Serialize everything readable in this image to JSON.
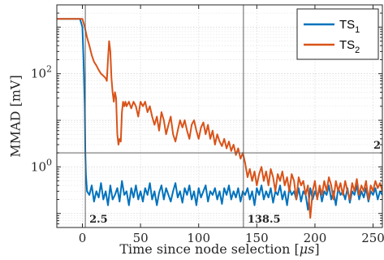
{
  "chart_data": {
    "type": "line",
    "xlabel": "Time since node selection [",
    "xlabel_unit": "μs",
    "xlabel_close": "]",
    "ylabel": "MMAD [mV]",
    "x_scale": "linear",
    "y_scale": "log",
    "xlim": [
      -22,
      258
    ],
    "ylim": [
      0.05,
      3000
    ],
    "x_ticks": [
      0,
      50,
      100,
      150,
      200,
      250
    ],
    "y_ticks": [
      {
        "value": 1,
        "base": "10",
        "exp": "0"
      },
      {
        "value": 100,
        "base": "10",
        "exp": "2"
      }
    ],
    "grid": "on (major and minor, dotted)",
    "legend_position": "top-right",
    "vertical_markers": [
      {
        "x": 2.5,
        "label": "2.5"
      },
      {
        "x": 138.5,
        "label": "138.5"
      }
    ],
    "horizontal_marker": {
      "y": 2.0,
      "label": "2"
    },
    "series": [
      {
        "name": "TS",
        "subscript": "1",
        "color": "#0072BD",
        "points": [
          [
            -22,
            1500
          ],
          [
            -5,
            1500
          ],
          [
            -2,
            1500
          ],
          [
            0,
            1000
          ],
          [
            1,
            200
          ],
          [
            2,
            20
          ],
          [
            2.5,
            2
          ],
          [
            3,
            0.7
          ],
          [
            4,
            0.3
          ],
          [
            6,
            0.25
          ],
          [
            8,
            0.4
          ],
          [
            10,
            0.18
          ],
          [
            12,
            0.3
          ],
          [
            14,
            0.22
          ],
          [
            16,
            0.45
          ],
          [
            18,
            0.2
          ],
          [
            20,
            0.3
          ],
          [
            22,
            0.15
          ],
          [
            24,
            0.4
          ],
          [
            26,
            0.2
          ],
          [
            28,
            0.25
          ],
          [
            30,
            0.35
          ],
          [
            32,
            0.18
          ],
          [
            34,
            0.5
          ],
          [
            36,
            0.25
          ],
          [
            38,
            0.3
          ],
          [
            40,
            0.15
          ],
          [
            42,
            0.35
          ],
          [
            44,
            0.22
          ],
          [
            46,
            0.4
          ],
          [
            48,
            0.2
          ],
          [
            50,
            0.3
          ],
          [
            52,
            0.18
          ],
          [
            54,
            0.35
          ],
          [
            56,
            0.25
          ],
          [
            58,
            0.45
          ],
          [
            60,
            0.2
          ],
          [
            62,
            0.3
          ],
          [
            64,
            0.15
          ],
          [
            66,
            0.28
          ],
          [
            68,
            0.4
          ],
          [
            70,
            0.2
          ],
          [
            72,
            0.35
          ],
          [
            74,
            0.25
          ],
          [
            76,
            0.18
          ],
          [
            78,
            0.3
          ],
          [
            80,
            0.45
          ],
          [
            82,
            0.22
          ],
          [
            84,
            0.3
          ],
          [
            86,
            0.17
          ],
          [
            88,
            0.35
          ],
          [
            90,
            0.25
          ],
          [
            92,
            0.4
          ],
          [
            94,
            0.2
          ],
          [
            96,
            0.3
          ],
          [
            98,
            0.15
          ],
          [
            100,
            0.35
          ],
          [
            102,
            0.22
          ],
          [
            104,
            0.3
          ],
          [
            106,
            0.4
          ],
          [
            108,
            0.18
          ],
          [
            110,
            0.3
          ],
          [
            112,
            0.25
          ],
          [
            114,
            0.35
          ],
          [
            116,
            0.2
          ],
          [
            118,
            0.3
          ],
          [
            120,
            0.16
          ],
          [
            122,
            0.35
          ],
          [
            124,
            0.25
          ],
          [
            126,
            0.4
          ],
          [
            128,
            0.2
          ],
          [
            130,
            0.3
          ],
          [
            132,
            0.22
          ],
          [
            134,
            0.35
          ],
          [
            136,
            0.18
          ],
          [
            138,
            0.3
          ],
          [
            140,
            0.25
          ],
          [
            142,
            0.35
          ],
          [
            144,
            0.2
          ],
          [
            146,
            0.3
          ],
          [
            148,
            0.15
          ],
          [
            150,
            0.35
          ],
          [
            152,
            0.25
          ],
          [
            154,
            0.4
          ],
          [
            156,
            0.2
          ],
          [
            158,
            0.3
          ],
          [
            160,
            0.22
          ],
          [
            162,
            0.35
          ],
          [
            164,
            0.17
          ],
          [
            166,
            0.3
          ],
          [
            168,
            0.25
          ],
          [
            170,
            0.4
          ],
          [
            172,
            0.2
          ],
          [
            174,
            0.3
          ],
          [
            176,
            0.15
          ],
          [
            178,
            0.35
          ],
          [
            180,
            0.25
          ],
          [
            182,
            0.3
          ],
          [
            184,
            0.2
          ],
          [
            186,
            0.35
          ],
          [
            188,
            0.18
          ],
          [
            190,
            0.3
          ],
          [
            192,
            0.25
          ],
          [
            194,
            0.12
          ],
          [
            196,
            0.35
          ],
          [
            198,
            0.2
          ],
          [
            200,
            0.3
          ],
          [
            202,
            0.22
          ],
          [
            204,
            0.35
          ],
          [
            206,
            0.18
          ],
          [
            208,
            0.3
          ],
          [
            210,
            0.25
          ],
          [
            212,
            0.4
          ],
          [
            214,
            0.2
          ],
          [
            216,
            0.3
          ],
          [
            218,
            0.15
          ],
          [
            220,
            0.35
          ],
          [
            222,
            0.25
          ],
          [
            224,
            0.3
          ],
          [
            226,
            0.2
          ],
          [
            228,
            0.35
          ],
          [
            230,
            0.17
          ],
          [
            232,
            0.3
          ],
          [
            234,
            0.25
          ],
          [
            236,
            0.4
          ],
          [
            238,
            0.2
          ],
          [
            240,
            0.3
          ],
          [
            242,
            0.22
          ],
          [
            244,
            0.35
          ],
          [
            246,
            0.18
          ],
          [
            248,
            0.3
          ],
          [
            250,
            0.25
          ],
          [
            252,
            0.35
          ],
          [
            254,
            0.2
          ],
          [
            256,
            0.3
          ],
          [
            258,
            0.25
          ]
        ]
      },
      {
        "name": "TS",
        "subscript": "2",
        "color": "#D95319",
        "points": [
          [
            -22,
            1500
          ],
          [
            -5,
            1500
          ],
          [
            0,
            1500
          ],
          [
            2,
            1000
          ],
          [
            4,
            600
          ],
          [
            6,
            400
          ],
          [
            8,
            250
          ],
          [
            10,
            180
          ],
          [
            12,
            150
          ],
          [
            14,
            120
          ],
          [
            16,
            100
          ],
          [
            18,
            90
          ],
          [
            20,
            80
          ],
          [
            21,
            70
          ],
          [
            22,
            200
          ],
          [
            23,
            500
          ],
          [
            24,
            300
          ],
          [
            25,
            80
          ],
          [
            26,
            40
          ],
          [
            27,
            25
          ],
          [
            28,
            40
          ],
          [
            29,
            30
          ],
          [
            30,
            5
          ],
          [
            31,
            3
          ],
          [
            32,
            4
          ],
          [
            33,
            3.5
          ],
          [
            34,
            15
          ],
          [
            35,
            25
          ],
          [
            36,
            20
          ],
          [
            37,
            25
          ],
          [
            38,
            20
          ],
          [
            40,
            25
          ],
          [
            42,
            18
          ],
          [
            44,
            25
          ],
          [
            46,
            20
          ],
          [
            48,
            12
          ],
          [
            50,
            25
          ],
          [
            52,
            20
          ],
          [
            54,
            25
          ],
          [
            56,
            15
          ],
          [
            58,
            20
          ],
          [
            60,
            12
          ],
          [
            62,
            8
          ],
          [
            64,
            12
          ],
          [
            66,
            6
          ],
          [
            68,
            15
          ],
          [
            70,
            10
          ],
          [
            72,
            5
          ],
          [
            74,
            8
          ],
          [
            76,
            12
          ],
          [
            78,
            5
          ],
          [
            80,
            3.5
          ],
          [
            82,
            6
          ],
          [
            84,
            10
          ],
          [
            86,
            7
          ],
          [
            88,
            10
          ],
          [
            90,
            6
          ],
          [
            92,
            4
          ],
          [
            94,
            8
          ],
          [
            96,
            10
          ],
          [
            98,
            6
          ],
          [
            100,
            4
          ],
          [
            102,
            7
          ],
          [
            104,
            9
          ],
          [
            106,
            5
          ],
          [
            108,
            8
          ],
          [
            110,
            4
          ],
          [
            112,
            6
          ],
          [
            114,
            3
          ],
          [
            116,
            5
          ],
          [
            118,
            3.5
          ],
          [
            120,
            2.8
          ],
          [
            122,
            4
          ],
          [
            124,
            2.5
          ],
          [
            126,
            3.5
          ],
          [
            128,
            2.2
          ],
          [
            130,
            3
          ],
          [
            132,
            1.8
          ],
          [
            134,
            2.5
          ],
          [
            136,
            1.5
          ],
          [
            138,
            2
          ],
          [
            140,
            1.2
          ],
          [
            142,
            0.6
          ],
          [
            144,
            0.9
          ],
          [
            146,
            0.5
          ],
          [
            148,
            0.8
          ],
          [
            150,
            0.4
          ],
          [
            152,
            0.7
          ],
          [
            154,
            1.0
          ],
          [
            156,
            0.5
          ],
          [
            158,
            0.8
          ],
          [
            160,
            0.4
          ],
          [
            162,
            0.9
          ],
          [
            164,
            0.6
          ],
          [
            166,
            0.3
          ],
          [
            168,
            0.7
          ],
          [
            170,
            0.5
          ],
          [
            172,
            0.8
          ],
          [
            174,
            0.4
          ],
          [
            176,
            0.6
          ],
          [
            178,
            0.3
          ],
          [
            180,
            0.7
          ],
          [
            182,
            0.5
          ],
          [
            184,
            0.2
          ],
          [
            186,
            0.6
          ],
          [
            188,
            0.4
          ],
          [
            190,
            0.5
          ],
          [
            192,
            0.25
          ],
          [
            194,
            0.4
          ],
          [
            196,
            0.08
          ],
          [
            198,
            0.3
          ],
          [
            200,
            0.5
          ],
          [
            202,
            0.2
          ],
          [
            204,
            0.4
          ],
          [
            206,
            0.25
          ],
          [
            208,
            0.5
          ],
          [
            210,
            0.3
          ],
          [
            212,
            0.6
          ],
          [
            214,
            0.4
          ],
          [
            216,
            0.2
          ],
          [
            218,
            0.5
          ],
          [
            220,
            0.3
          ],
          [
            222,
            0.45
          ],
          [
            224,
            0.25
          ],
          [
            226,
            0.5
          ],
          [
            228,
            0.3
          ],
          [
            230,
            0.2
          ],
          [
            232,
            0.45
          ],
          [
            234,
            0.3
          ],
          [
            236,
            0.55
          ],
          [
            238,
            0.25
          ],
          [
            240,
            0.4
          ],
          [
            242,
            0.3
          ],
          [
            244,
            0.5
          ],
          [
            246,
            0.2
          ],
          [
            248,
            0.4
          ],
          [
            250,
            0.3
          ],
          [
            252,
            0.5
          ],
          [
            254,
            0.35
          ],
          [
            256,
            0.45
          ],
          [
            258,
            0.3
          ]
        ]
      }
    ]
  }
}
